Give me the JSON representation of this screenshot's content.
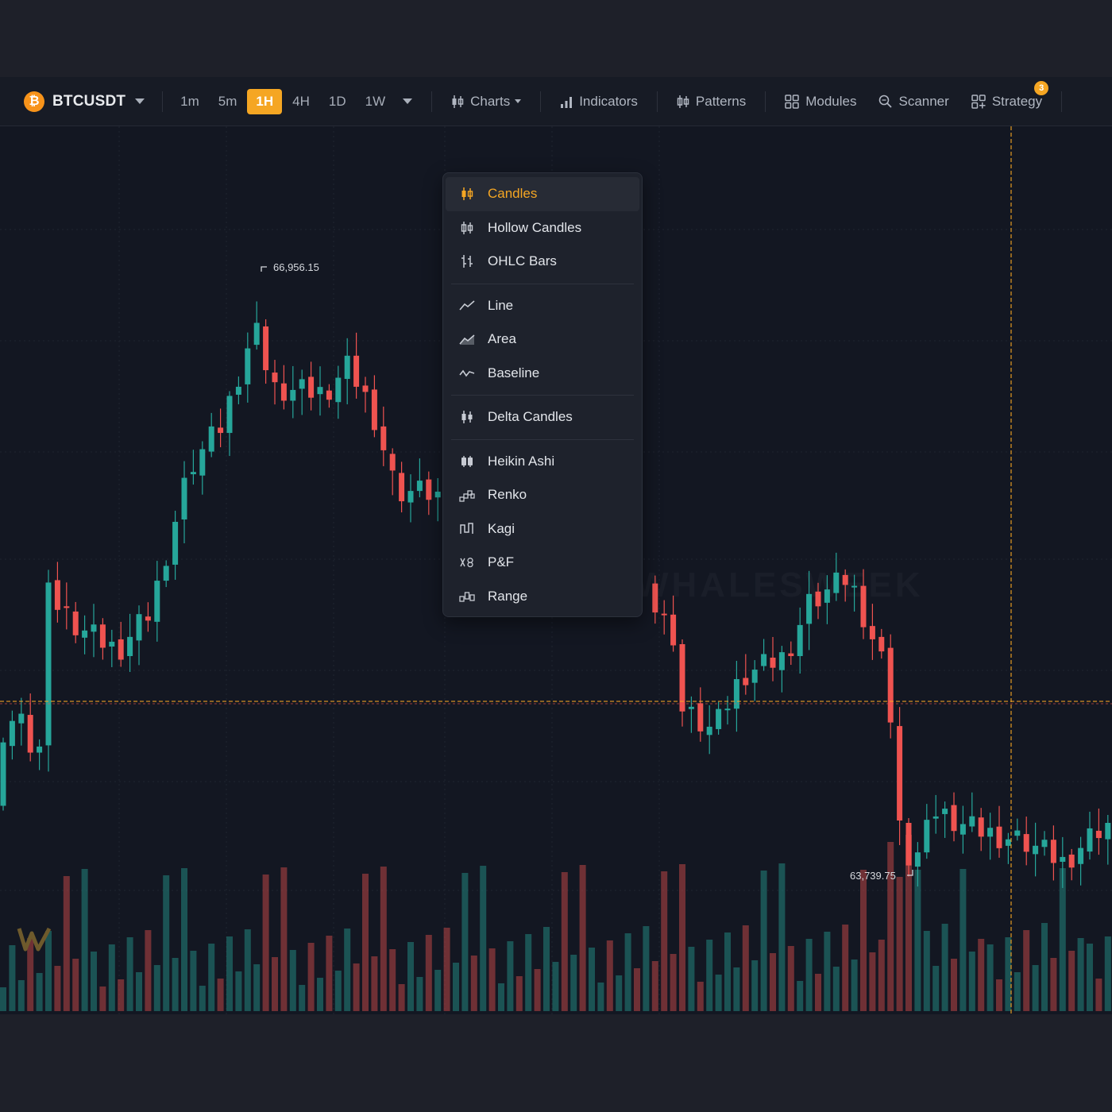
{
  "symbol": {
    "name": "BTCUSDT",
    "coin_glyph": "₿",
    "coin_color": "#f7931a"
  },
  "timeframes": [
    "1m",
    "5m",
    "1H",
    "4H",
    "1D",
    "1W"
  ],
  "active_timeframe": "1H",
  "toolbar": {
    "charts_label": "Charts",
    "indicators_label": "Indicators",
    "patterns_label": "Patterns",
    "modules_label": "Modules",
    "scanner_label": "Scanner",
    "strategy_label": "Strategy",
    "strategy_badge": "3"
  },
  "chart_menu": {
    "selected": "Candles",
    "groups": [
      [
        "Candles",
        "Hollow Candles",
        "OHLC Bars"
      ],
      [
        "Line",
        "Area",
        "Baseline"
      ],
      [
        "Delta Candles"
      ],
      [
        "Heikin Ashi",
        "Renko",
        "Kagi",
        "P&F",
        "Range"
      ]
    ],
    "icons": {
      "Candles": "candles-icon",
      "Hollow Candles": "hollow-candles-icon",
      "OHLC Bars": "ohlc-bars-icon",
      "Line": "line-chart-icon",
      "Area": "area-chart-icon",
      "Baseline": "baseline-chart-icon",
      "Delta Candles": "delta-candles-icon",
      "Heikin Ashi": "heikin-ashi-icon",
      "Renko": "renko-icon",
      "Kagi": "kagi-icon",
      "P&F": "point-figure-icon",
      "Range": "range-icon"
    }
  },
  "chart": {
    "high_label": "66,956.15",
    "low_label": "63,739.75",
    "up_color": "#26a69a",
    "down_color": "#ef5350",
    "accent_color": "#f5a623"
  }
}
